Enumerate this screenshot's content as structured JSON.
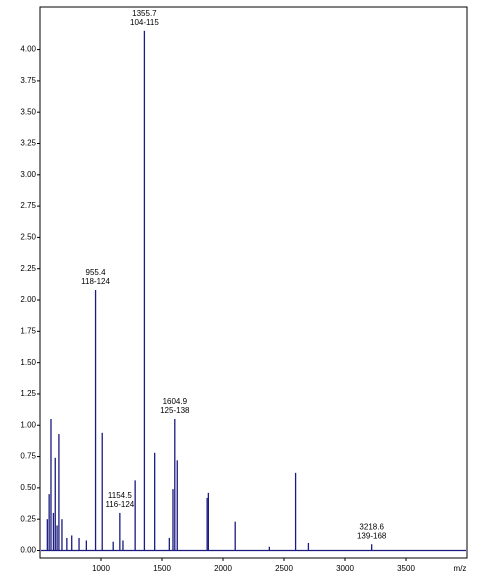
{
  "chart_data": {
    "type": "spectrum",
    "color": "#1a1a80",
    "x_label": "m/z",
    "x": [
      560,
      575,
      590,
      610,
      625,
      640,
      655,
      680,
      720,
      760,
      820,
      880,
      955.4,
      1010,
      1100,
      1154.5,
      1180,
      1280,
      1355.7,
      1440,
      1560,
      1590,
      1604.9,
      1625,
      1870,
      1880,
      2100,
      2380,
      2595,
      2700,
      3218.6
    ],
    "values": [
      0.25,
      0.45,
      1.05,
      0.3,
      0.74,
      0.2,
      0.93,
      0.25,
      0.1,
      0.12,
      0.1,
      0.08,
      2.08,
      0.94,
      0.07,
      0.3,
      0.08,
      0.56,
      4.15,
      0.78,
      0.1,
      0.49,
      1.05,
      0.72,
      0.42,
      0.46,
      0.23,
      0.03,
      0.62,
      0.06,
      0.05
    ],
    "annotations": [
      {
        "text": "955.4",
        "range": "118-124",
        "x": 955.4
      },
      {
        "text": "1154.5",
        "range": "116-124",
        "x": 1154.5
      },
      {
        "text": "1355.7",
        "range": "104-115",
        "x": 1355.7
      },
      {
        "text": "1604.9",
        "range": "125-138",
        "x": 1604.9
      },
      {
        "text": "3218.6",
        "range": "139-168",
        "x": 3218.6
      }
    ],
    "xlim": [
      500,
      4000
    ],
    "ylim": [
      -0.06,
      4.34
    ],
    "xticks": [
      1000,
      1500,
      2000,
      2500,
      3000,
      3500
    ],
    "yticks": [
      {
        "value": 0,
        "label": "0.00"
      },
      {
        "value": 0.25,
        "label": "0.25"
      },
      {
        "value": 0.5,
        "label": "0.50"
      },
      {
        "value": 0.75,
        "label": "0.75"
      },
      {
        "value": 1,
        "label": "1.00"
      },
      {
        "value": 1.25,
        "label": "1.25"
      },
      {
        "value": 1.5,
        "label": "1.50"
      },
      {
        "value": 1.75,
        "label": "1.75"
      },
      {
        "value": 2,
        "label": "2.00"
      },
      {
        "value": 2.25,
        "label": "2.25"
      },
      {
        "value": 2.5,
        "label": "2.50"
      },
      {
        "value": 2.75,
        "label": "2.75"
      },
      {
        "value": 3,
        "label": "3.00"
      },
      {
        "value": 3.25,
        "label": "3.25"
      },
      {
        "value": 3.5,
        "label": "3.50"
      },
      {
        "value": 3.75,
        "label": "3.75"
      },
      {
        "value": 4,
        "label": "4.00"
      }
    ]
  }
}
